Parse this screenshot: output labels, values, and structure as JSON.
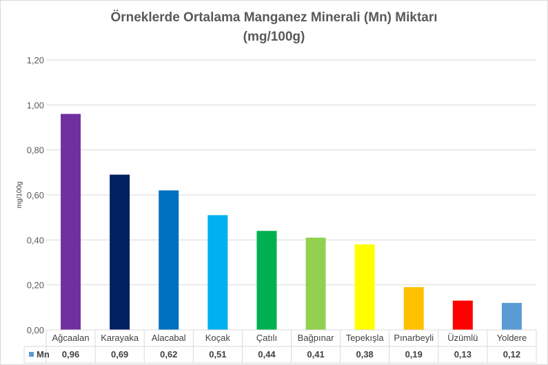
{
  "chart_data": {
    "type": "bar",
    "title_line1": "Örneklerde Ortalama Manganez Minerali (Mn) Miktarı",
    "title_line2": "(mg/100g)",
    "ylabel": "mg/100g",
    "xlabel": "",
    "ylim": [
      0,
      1.2
    ],
    "yticks": [
      "0,00",
      "0,20",
      "0,40",
      "0,60",
      "0,80",
      "1,00",
      "1,20"
    ],
    "grid": true,
    "legend_position": "bottom data table",
    "categories": [
      "Ağcaalan",
      "Karayaka",
      "Alacabal",
      "Koçak",
      "Çatılı",
      "Bağpınar",
      "Tepekışla",
      "Pınarbeyli",
      "Üzümlü",
      "Yoldere"
    ],
    "series": [
      {
        "name": "Mn",
        "values": [
          0.96,
          0.69,
          0.62,
          0.51,
          0.44,
          0.41,
          0.38,
          0.19,
          0.13,
          0.12
        ],
        "labels": [
          "0,96",
          "0,69",
          "0,62",
          "0,51",
          "0,44",
          "0,41",
          "0,38",
          "0,19",
          "0,13",
          "0,12"
        ]
      }
    ],
    "legend_color": "#5b9bd5",
    "bar_colors": [
      "#7030a0",
      "#002060",
      "#0070c0",
      "#00b0f0",
      "#00b050",
      "#92d050",
      "#ffff00",
      "#ffc000",
      "#ff0000",
      "#5b9bd5"
    ]
  }
}
